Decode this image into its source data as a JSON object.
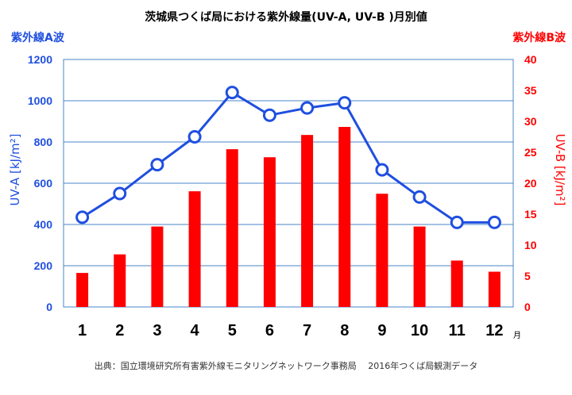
{
  "chart_data": {
    "type": "bar+line",
    "title": "茨城県つくば局における紫外線量(UV-A, UV-B )月別値",
    "categories": [
      "1",
      "2",
      "3",
      "4",
      "5",
      "6",
      "7",
      "8",
      "9",
      "10",
      "11",
      "12"
    ],
    "x_unit": "月",
    "left_axis": {
      "header": "紫外線A波",
      "label": "UV-A [kJ/m²]",
      "range": [
        0,
        1200
      ],
      "ticks": [
        "0",
        "200",
        "400",
        "600",
        "800",
        "1000",
        "1200"
      ]
    },
    "right_axis": {
      "header": "紫外線B波",
      "label": "UV-B [kJ/m²]",
      "range": [
        0,
        40
      ],
      "ticks": [
        "0",
        "5",
        "10",
        "15",
        "20",
        "25",
        "30",
        "35",
        "40"
      ]
    },
    "series": [
      {
        "type": "line",
        "axis": "left",
        "color": "#1f4fe0",
        "values": [
          435,
          550,
          690,
          825,
          1040,
          930,
          965,
          990,
          665,
          533,
          410,
          410
        ]
      },
      {
        "type": "bar",
        "axis": "right",
        "color": "#ff0000",
        "values": [
          5.5,
          8.5,
          13,
          18.7,
          25.5,
          24.2,
          27.8,
          29.1,
          18.3,
          13,
          7.5,
          5.7
        ]
      }
    ],
    "grid": true,
    "source": "出典：国立環境研究所有害紫外線モニタリングネットワーク事務局　 2016年つくば局観測データ"
  }
}
